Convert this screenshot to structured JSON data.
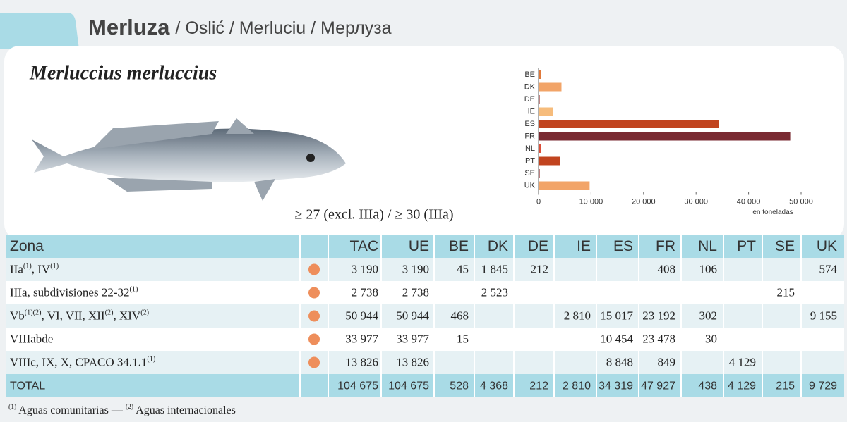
{
  "header": {
    "title": "Merluza",
    "subtitle": "/ Oslić / Merluciu / Мерлуза"
  },
  "species": "Merluccius merluccius",
  "size": "≥ 27 (excl. IIIa) / ≥ 30 (IIIa)",
  "chart_data": {
    "type": "bar",
    "horizontal": true,
    "categories": [
      "BE",
      "DK",
      "DE",
      "IE",
      "ES",
      "FR",
      "NL",
      "PT",
      "SE",
      "UK"
    ],
    "values": [
      528,
      4368,
      212,
      2810,
      34319,
      47927,
      438,
      4129,
      215,
      9729
    ],
    "colors": [
      "#e0793b",
      "#f2a468",
      "#8e2d2e",
      "#f6bc7c",
      "#c1441f",
      "#7a2a32",
      "#db4f3a",
      "#c1441f",
      "#8e2d2e",
      "#f2a468"
    ],
    "xlim": [
      0,
      50000
    ],
    "xticks": [
      0,
      {
        "value": 10000,
        "label": "10 000"
      },
      {
        "value": 20000,
        "label": "20 000"
      },
      {
        "value": 30000,
        "label": "30 000"
      },
      {
        "value": 40000,
        "label": "40 000"
      },
      {
        "value": 50000,
        "label": "50 000"
      }
    ],
    "xlabel": "en toneladas"
  },
  "table": {
    "columns": [
      "Zona",
      "TAC",
      "UE",
      "BE",
      "DK",
      "DE",
      "IE",
      "ES",
      "FR",
      "NL",
      "PT",
      "SE",
      "UK"
    ],
    "rows": [
      {
        "zone": [
          {
            "t": "IIa"
          },
          {
            "sup": "(1)"
          },
          {
            "t": ", IV"
          },
          {
            "sup": "(1)"
          }
        ],
        "cells": [
          "3 190",
          "3 190",
          "45",
          "1 845",
          "212",
          null,
          null,
          "408",
          "106",
          null,
          null,
          "574"
        ]
      },
      {
        "zone": [
          {
            "t": "IIIa, subdivisiones 22-32"
          },
          {
            "sup": "(1)"
          }
        ],
        "cells": [
          "2 738",
          "2 738",
          null,
          "2 523",
          null,
          null,
          null,
          null,
          null,
          null,
          "215",
          null
        ]
      },
      {
        "zone": [
          {
            "t": "Vb"
          },
          {
            "sup": "(1)(2)"
          },
          {
            "t": ", VI, VII, XII"
          },
          {
            "sup": "(2)"
          },
          {
            "t": ", XIV"
          },
          {
            "sup": "(2)"
          }
        ],
        "cells": [
          "50 944",
          "50 944",
          "468",
          null,
          null,
          "2 810",
          "15 017",
          "23 192",
          "302",
          null,
          null,
          "9 155"
        ]
      },
      {
        "zone": [
          {
            "t": "VIIIabde"
          }
        ],
        "cells": [
          "33 977",
          "33 977",
          "15",
          null,
          null,
          null,
          "10 454",
          "23 478",
          "30",
          null,
          null,
          null
        ]
      },
      {
        "zone": [
          {
            "t": "VIIIc, IX, X, CPACO 34.1.1"
          },
          {
            "sup": "(1)"
          }
        ],
        "cells": [
          "13 826",
          "13 826",
          null,
          null,
          null,
          null,
          "8 848",
          "849",
          null,
          "4 129",
          null,
          null
        ]
      }
    ],
    "total": {
      "label": "TOTAL",
      "cells": [
        "104 675",
        "104 675",
        "528",
        "4 368",
        "212",
        "2 810",
        "34 319",
        "47 927",
        "438",
        "4 129",
        "215",
        "9 729"
      ]
    }
  },
  "footnote": [
    {
      "sup": "(1)"
    },
    {
      "t": " Aguas comunitarias — "
    },
    {
      "sup": "(2)"
    },
    {
      "t": " Aguas internacionales"
    }
  ]
}
